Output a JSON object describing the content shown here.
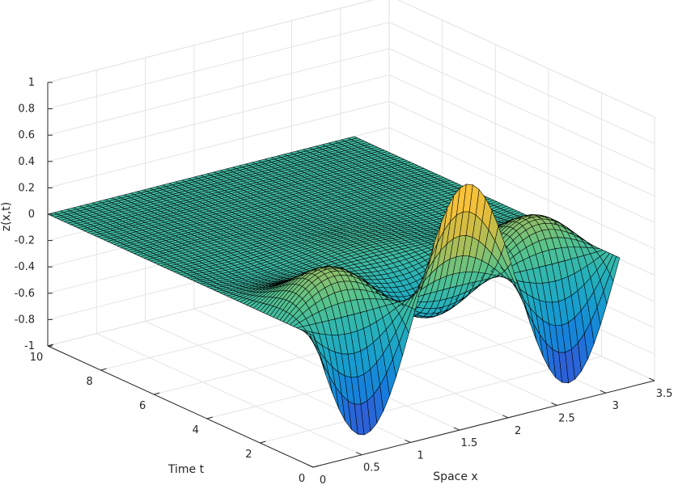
{
  "chart_data": {
    "type": "surface",
    "xlabel": "Space x",
    "ylabel": "Time t",
    "zlabel": "z(x,t)",
    "xlim": [
      0,
      3.5
    ],
    "ylim": [
      0,
      10
    ],
    "zlim": [
      -1,
      1
    ],
    "xticks": [
      "0",
      "0.5",
      "1",
      "1.5",
      "2",
      "2.5",
      "3",
      "3.5"
    ],
    "yticks": [
      "0",
      "2",
      "4",
      "6",
      "8",
      "10"
    ],
    "zticks": [
      "-1",
      "-0.8",
      "-0.6",
      "-0.4",
      "-0.2",
      "0",
      "0.2",
      "0.4",
      "0.6",
      "0.8",
      "1"
    ],
    "x_range": [
      0,
      3.1416
    ],
    "t_range": [
      0,
      10
    ],
    "surface_samples": [
      {
        "x": 0.0,
        "t": 0,
        "z": 0.0
      },
      {
        "x": 0.5,
        "t": 0,
        "z": -0.72
      },
      {
        "x": 1.0,
        "t": 0,
        "z": -0.88
      },
      {
        "x": 1.57,
        "t": 0,
        "z": 0.0
      },
      {
        "x": 2.09,
        "t": 0,
        "z": 0.85
      },
      {
        "x": 2.6,
        "t": 0,
        "z": -0.55
      },
      {
        "x": 3.14,
        "t": 0,
        "z": 0.0
      },
      {
        "x": 1.57,
        "t": 1.6,
        "z": 0.92
      },
      {
        "x": 2.4,
        "t": 0.6,
        "z": 0.5
      },
      {
        "x": 1.57,
        "t": 4,
        "z": -0.05
      },
      {
        "x": 1.57,
        "t": 10,
        "z": 0.0
      }
    ],
    "colormap": "parula",
    "grid": true
  }
}
